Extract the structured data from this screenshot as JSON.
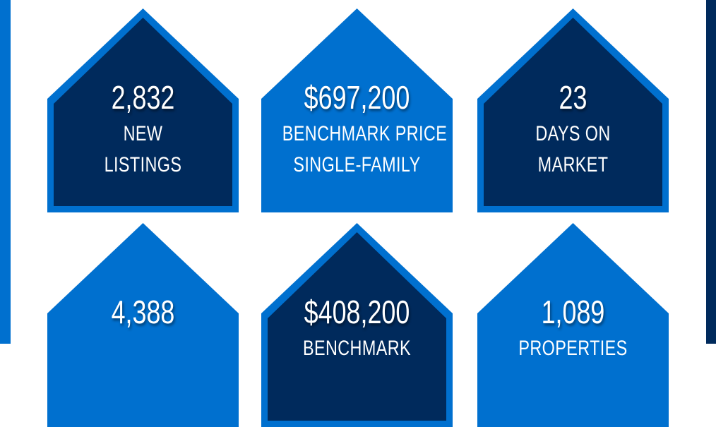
{
  "colors": {
    "navy": "#002a5c",
    "blue": "#0070cf",
    "frame_left": "#0070cf",
    "frame_right": "#002a5c"
  },
  "stats": [
    {
      "value": "2,832",
      "line1": "NEW",
      "line2": "LISTINGS",
      "style": "dark"
    },
    {
      "value": "$697,200",
      "line1": "BENCHMARK PRICE",
      "line2": "SINGLE-FAMILY",
      "style": "light"
    },
    {
      "value": "23",
      "line1": "DAYS ON",
      "line2": "MARKET",
      "style": "dark"
    },
    {
      "value": "4,388",
      "line1": "",
      "line2": "",
      "style": "light"
    },
    {
      "value": "$408,200",
      "line1": "BENCHMARK",
      "line2": "",
      "style": "dark"
    },
    {
      "value": "1,089",
      "line1": "PROPERTIES",
      "line2": "",
      "style": "light"
    }
  ]
}
